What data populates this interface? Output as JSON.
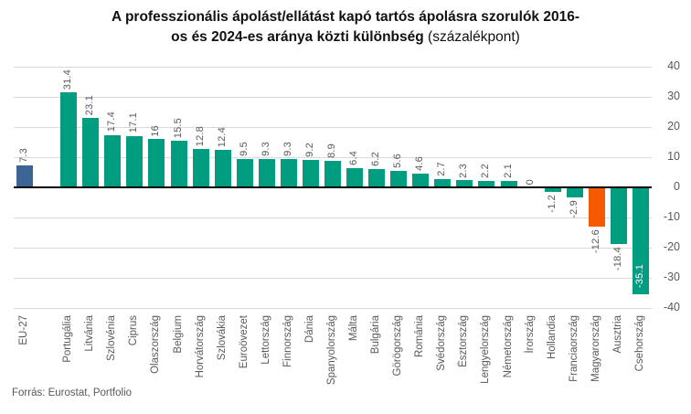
{
  "title": {
    "bold_line1": "A professzionális ápolást/ellátást kapó tartós ápolásra szorulók 2016-",
    "bold_line2": "os és 2024-es aránya közti különbség",
    "normal_suffix": "(százalékpont)"
  },
  "footer": {
    "source": "Forrás: Eurostat, Portfolio"
  },
  "colors": {
    "eu_bar": "#3c6595",
    "country_bar": "#009d80",
    "hungary_bar": "#f55a00",
    "gridline": "#d9d9d9",
    "zero_line": "#000000",
    "label_text": "#595959",
    "inside_label_text": "#ffffff",
    "background": "#ffffff"
  },
  "chart_data": {
    "type": "bar",
    "title": "A professzionális ápolást/ellátást kapó tartós ápolásra szorulók 2016-os és 2024-es aránya közti különbség (százalékpont)",
    "unit": "százalékpont",
    "ylim": [
      -40,
      40
    ],
    "yticks": [
      40,
      30,
      20,
      10,
      0,
      "-10",
      "-20",
      "-30",
      "-40"
    ],
    "ytick_values": [
      40,
      30,
      20,
      10,
      0,
      -10,
      -20,
      -30,
      -40
    ],
    "grid": true,
    "legend": "none",
    "value_labels_rotated": true,
    "categories": [
      "EU-27",
      "Portugália",
      "Litvánia",
      "Szlovénia",
      "Ciprus",
      "Olaszország",
      "Belgium",
      "Horvátország",
      "Szlovákia",
      "Euroövezet",
      "Lettország",
      "Finnország",
      "Dánia",
      "Spanyolország",
      "Málta",
      "Bulgária",
      "Görögország",
      "Románia",
      "Svédország",
      "Észtország",
      "Lengyelország",
      "Németország",
      "Írország",
      "Hollandia",
      "Franciaország",
      "Magyarország",
      "Ausztria",
      "Csehország"
    ],
    "values": [
      7.3,
      31.4,
      23.1,
      17.4,
      17.1,
      16,
      15.5,
      12.8,
      12.4,
      9.5,
      9.3,
      9.3,
      9.2,
      8.9,
      6.4,
      6.2,
      5.6,
      4.6,
      2.7,
      2.3,
      2.2,
      2.1,
      0,
      -1.2,
      -2.9,
      -12.6,
      -18.4,
      -35.1
    ],
    "bars": [
      {
        "label": "EU-27",
        "value": 7.3,
        "display": "7.3",
        "color": "#3c6595",
        "gap_after": true
      },
      {
        "label": "Portugália",
        "value": 31.4,
        "display": "31.4",
        "color": "#009d80"
      },
      {
        "label": "Litvánia",
        "value": 23.1,
        "display": "23.1",
        "color": "#009d80"
      },
      {
        "label": "Szlovénia",
        "value": 17.4,
        "display": "17.4",
        "color": "#009d80"
      },
      {
        "label": "Ciprus",
        "value": 17.1,
        "display": "17.1",
        "color": "#009d80"
      },
      {
        "label": "Olaszország",
        "value": 16,
        "display": "16",
        "color": "#009d80"
      },
      {
        "label": "Belgium",
        "value": 15.5,
        "display": "15.5",
        "color": "#009d80"
      },
      {
        "label": "Horvátország",
        "value": 12.8,
        "display": "12.8",
        "color": "#009d80"
      },
      {
        "label": "Szlovákia",
        "value": 12.4,
        "display": "12.4",
        "color": "#009d80"
      },
      {
        "label": "Euroövezet",
        "value": 9.5,
        "display": "9.5",
        "color": "#009d80"
      },
      {
        "label": "Lettország",
        "value": 9.3,
        "display": "9.3",
        "color": "#009d80"
      },
      {
        "label": "Finnország",
        "value": 9.3,
        "display": "9.3",
        "color": "#009d80"
      },
      {
        "label": "Dánia",
        "value": 9.2,
        "display": "9.2",
        "color": "#009d80"
      },
      {
        "label": "Spanyolország",
        "value": 8.9,
        "display": "8.9",
        "color": "#009d80"
      },
      {
        "label": "Málta",
        "value": 6.4,
        "display": "6.4",
        "color": "#009d80"
      },
      {
        "label": "Bulgária",
        "value": 6.2,
        "display": "6.2",
        "color": "#009d80"
      },
      {
        "label": "Görögország",
        "value": 5.6,
        "display": "5.6",
        "color": "#009d80"
      },
      {
        "label": "Románia",
        "value": 4.6,
        "display": "4.6",
        "color": "#009d80"
      },
      {
        "label": "Svédország",
        "value": 2.7,
        "display": "2.7",
        "color": "#009d80"
      },
      {
        "label": "Észtország",
        "value": 2.3,
        "display": "2.3",
        "color": "#009d80"
      },
      {
        "label": "Lengyelország",
        "value": 2.2,
        "display": "2.2",
        "color": "#009d80"
      },
      {
        "label": "Németország",
        "value": 2.1,
        "display": "2.1",
        "color": "#009d80"
      },
      {
        "label": "Írország",
        "value": 0,
        "display": "0",
        "color": "#009d80"
      },
      {
        "label": "Hollandia",
        "value": -1.2,
        "display": "-1.2",
        "color": "#009d80"
      },
      {
        "label": "Franciaország",
        "value": -2.9,
        "display": "-2.9",
        "color": "#009d80"
      },
      {
        "label": "Magyarország",
        "value": -12.6,
        "display": "-12.6",
        "color": "#f55a00"
      },
      {
        "label": "Ausztria",
        "value": -18.4,
        "display": "-18.4",
        "color": "#009d80"
      },
      {
        "label": "Csehország",
        "value": -35.1,
        "display": "-35.1",
        "color": "#009d80",
        "label_inside": true
      }
    ]
  }
}
